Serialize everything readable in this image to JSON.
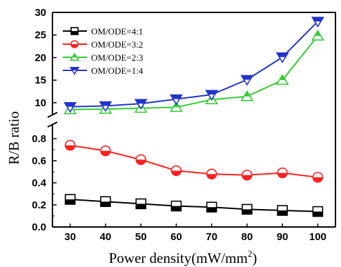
{
  "chart_data": {
    "type": "line",
    "x": [
      30,
      40,
      50,
      60,
      70,
      80,
      90,
      100
    ],
    "xlabel": "Power density(mW/mm",
    "xlabel_sup": "2",
    "xlabel_close": ")",
    "ylabel": "R/B ratio",
    "xlim": [
      25,
      105
    ],
    "y_axis_broken": true,
    "y_lower_range": [
      0.0,
      0.9
    ],
    "y_upper_range": [
      8,
      30
    ],
    "x_ticks": [
      "30",
      "40",
      "50",
      "60",
      "70",
      "80",
      "90",
      "100"
    ],
    "y_lower_ticks": [
      "0.0",
      "0.2",
      "0.4",
      "0.6",
      "0.8"
    ],
    "y_upper_ticks": [
      "10",
      "15",
      "20",
      "25",
      "30"
    ],
    "legend_position": "top-left",
    "series": [
      {
        "name": "OM/ODE=4:1",
        "color": "#000000",
        "marker": "half-filled-square",
        "values": [
          0.25,
          0.23,
          0.21,
          0.19,
          0.18,
          0.16,
          0.15,
          0.14
        ]
      },
      {
        "name": "OM/ODE=3:2",
        "color": "#ff2020",
        "marker": "half-filled-circle",
        "values": [
          0.74,
          0.69,
          0.61,
          0.51,
          0.48,
          0.47,
          0.49,
          0.45
        ]
      },
      {
        "name": "OM/ODE=2:3",
        "color": "#33cc33",
        "marker": "half-filled-triangle-up",
        "values": [
          8.5,
          8.6,
          8.8,
          9.0,
          10.7,
          11.4,
          15.0,
          24.8
        ]
      },
      {
        "name": "OM/ODE=1:4",
        "color": "#2233cc",
        "marker": "half-filled-triangle-down",
        "values": [
          9.1,
          9.3,
          9.8,
          10.8,
          11.8,
          15.1,
          20.1,
          28.0
        ]
      }
    ]
  }
}
